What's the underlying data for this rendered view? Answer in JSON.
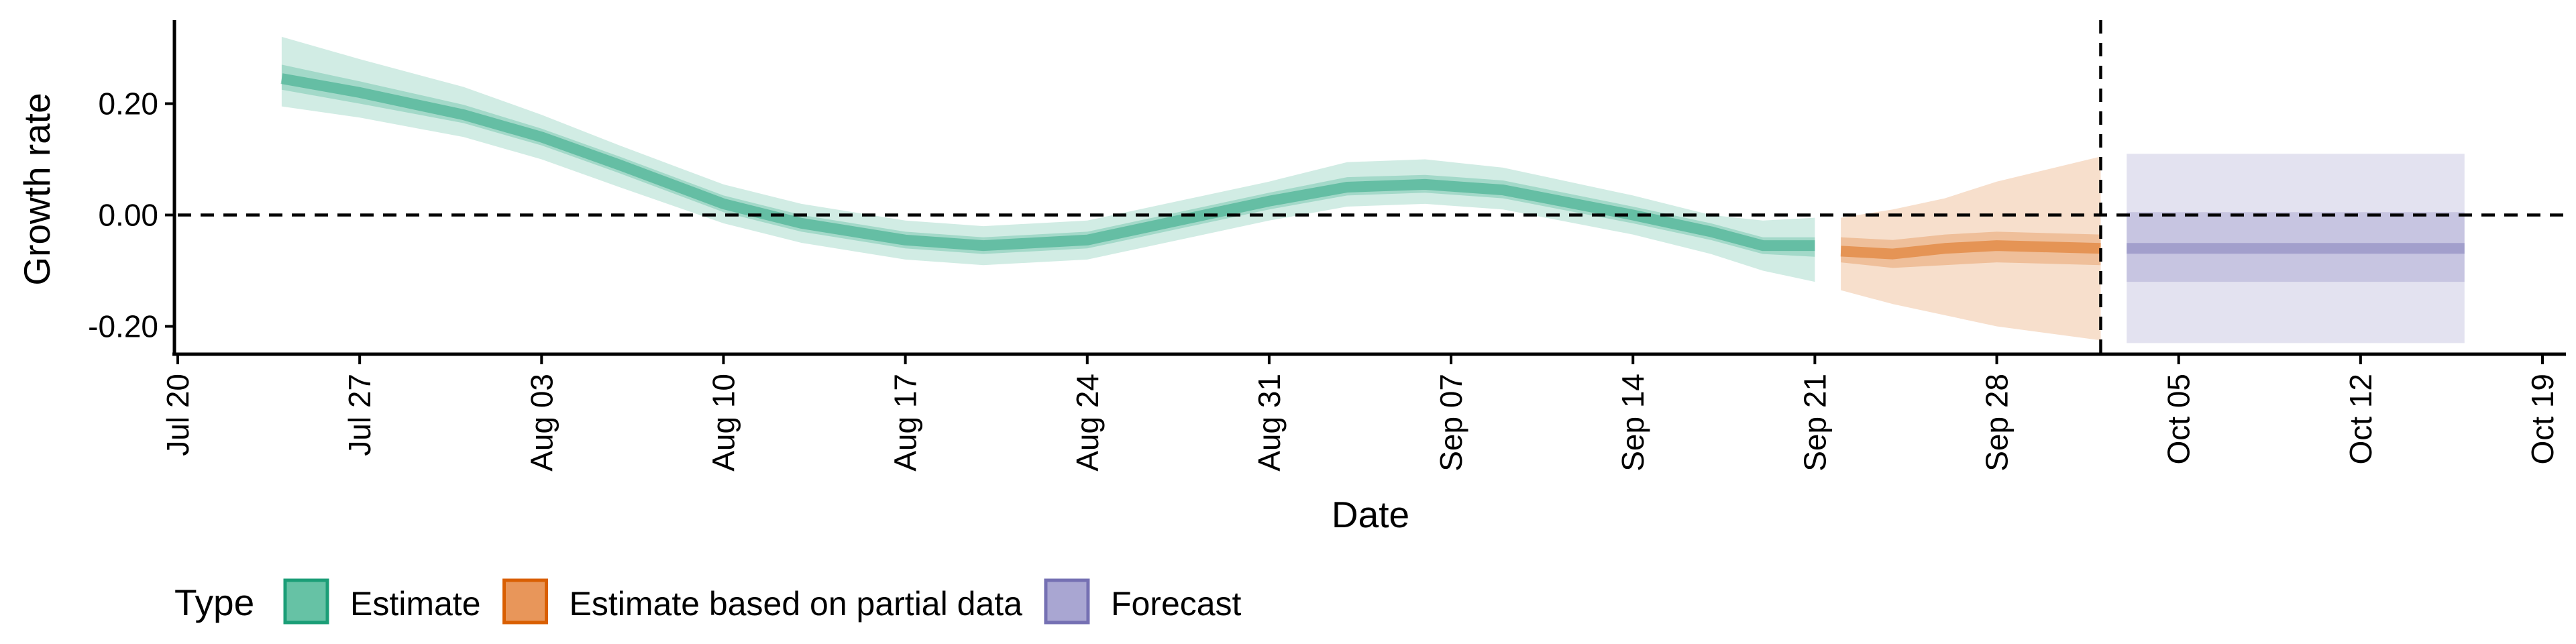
{
  "chart_data": {
    "type": "area",
    "xlabel": "Date",
    "ylabel": "Growth rate",
    "x_axis": {
      "type": "date",
      "range": [
        "2020-07-20",
        "2020-10-19"
      ],
      "ticks": [
        {
          "date": "2020-07-20",
          "label": "Jul 20"
        },
        {
          "date": "2020-07-27",
          "label": "Jul 27"
        },
        {
          "date": "2020-08-03",
          "label": "Aug 03"
        },
        {
          "date": "2020-08-10",
          "label": "Aug 10"
        },
        {
          "date": "2020-08-17",
          "label": "Aug 17"
        },
        {
          "date": "2020-08-24",
          "label": "Aug 24"
        },
        {
          "date": "2020-08-31",
          "label": "Aug 31"
        },
        {
          "date": "2020-09-07",
          "label": "Sep 07"
        },
        {
          "date": "2020-09-14",
          "label": "Sep 14"
        },
        {
          "date": "2020-09-21",
          "label": "Sep 21"
        },
        {
          "date": "2020-09-28",
          "label": "Sep 28"
        },
        {
          "date": "2020-10-05",
          "label": "Oct 05"
        },
        {
          "date": "2020-10-12",
          "label": "Oct 12"
        },
        {
          "date": "2020-10-19",
          "label": "Oct 19"
        }
      ]
    },
    "y_axis": {
      "range": [
        -0.25,
        0.35
      ],
      "ticks": [
        {
          "value": -0.2,
          "label": "-0.20"
        },
        {
          "value": 0.0,
          "label": "0.00"
        },
        {
          "value": 0.2,
          "label": "0.20"
        }
      ]
    },
    "reference_lines": {
      "horizontal": 0.0,
      "vertical_date": "2020-10-02"
    },
    "legend": {
      "title": "Type",
      "position": "bottom",
      "items": [
        {
          "label": "Estimate",
          "fill": "#66c2a5",
          "border": "#1b9e77"
        },
        {
          "label": "Estimate based on partial data",
          "fill": "#e8965a",
          "border": "#d95f02"
        },
        {
          "label": "Forecast",
          "fill": "#a9a6d2",
          "border": "#7570b3"
        }
      ]
    },
    "series": [
      {
        "type_label": "Estimate",
        "color": "#1b9e77",
        "points": [
          {
            "date": "2020-07-24",
            "median": 0.245,
            "lower50": 0.225,
            "upper50": 0.27,
            "lower90": 0.195,
            "upper90": 0.32
          },
          {
            "date": "2020-07-27",
            "median": 0.22,
            "lower50": 0.2,
            "upper50": 0.24,
            "lower90": 0.175,
            "upper90": 0.28
          },
          {
            "date": "2020-07-31",
            "median": 0.18,
            "lower50": 0.165,
            "upper50": 0.198,
            "lower90": 0.14,
            "upper90": 0.23
          },
          {
            "date": "2020-08-03",
            "median": 0.14,
            "lower50": 0.125,
            "upper50": 0.155,
            "lower90": 0.1,
            "upper90": 0.18
          },
          {
            "date": "2020-08-06",
            "median": 0.09,
            "lower50": 0.075,
            "upper50": 0.105,
            "lower90": 0.05,
            "upper90": 0.125
          },
          {
            "date": "2020-08-10",
            "median": 0.02,
            "lower50": 0.005,
            "upper50": 0.035,
            "lower90": -0.015,
            "upper90": 0.055
          },
          {
            "date": "2020-08-13",
            "median": -0.015,
            "lower50": -0.03,
            "upper50": 0.0,
            "lower90": -0.05,
            "upper90": 0.02
          },
          {
            "date": "2020-08-17",
            "median": -0.045,
            "lower50": -0.06,
            "upper50": -0.03,
            "lower90": -0.08,
            "upper90": -0.01
          },
          {
            "date": "2020-08-20",
            "median": -0.055,
            "lower50": -0.07,
            "upper50": -0.04,
            "lower90": -0.09,
            "upper90": -0.02
          },
          {
            "date": "2020-08-24",
            "median": -0.045,
            "lower50": -0.06,
            "upper50": -0.03,
            "lower90": -0.08,
            "upper90": -0.01
          },
          {
            "date": "2020-08-27",
            "median": -0.015,
            "lower50": -0.03,
            "upper50": 0.0,
            "lower90": -0.05,
            "upper90": 0.02
          },
          {
            "date": "2020-08-31",
            "median": 0.025,
            "lower50": 0.01,
            "upper50": 0.04,
            "lower90": -0.01,
            "upper90": 0.06
          },
          {
            "date": "2020-09-03",
            "median": 0.05,
            "lower50": 0.035,
            "upper50": 0.068,
            "lower90": 0.015,
            "upper90": 0.095
          },
          {
            "date": "2020-09-06",
            "median": 0.055,
            "lower50": 0.04,
            "upper50": 0.072,
            "lower90": 0.02,
            "upper90": 0.1
          },
          {
            "date": "2020-09-09",
            "median": 0.045,
            "lower50": 0.03,
            "upper50": 0.062,
            "lower90": 0.01,
            "upper90": 0.085
          },
          {
            "date": "2020-09-14",
            "median": 0.0,
            "lower50": -0.015,
            "upper50": 0.015,
            "lower90": -0.035,
            "upper90": 0.035
          },
          {
            "date": "2020-09-17",
            "median": -0.03,
            "lower50": -0.045,
            "upper50": -0.015,
            "lower90": -0.07,
            "upper90": 0.0
          },
          {
            "date": "2020-09-19",
            "median": -0.055,
            "lower50": -0.07,
            "upper50": -0.04,
            "lower90": -0.1,
            "upper90": -0.01
          },
          {
            "date": "2020-09-21",
            "median": -0.055,
            "lower50": -0.075,
            "upper50": -0.04,
            "lower90": -0.12,
            "upper90": -0.005
          }
        ]
      },
      {
        "type_label": "Estimate based on partial data",
        "color": "#d95f02",
        "points": [
          {
            "date": "2020-09-22",
            "median": -0.065,
            "lower50": -0.085,
            "upper50": -0.04,
            "lower90": -0.135,
            "upper90": -0.005
          },
          {
            "date": "2020-09-24",
            "median": -0.07,
            "lower50": -0.095,
            "upper50": -0.045,
            "lower90": -0.16,
            "upper90": 0.01
          },
          {
            "date": "2020-09-26",
            "median": -0.06,
            "lower50": -0.09,
            "upper50": -0.035,
            "lower90": -0.18,
            "upper90": 0.03
          },
          {
            "date": "2020-09-28",
            "median": -0.055,
            "lower50": -0.085,
            "upper50": -0.03,
            "lower90": -0.2,
            "upper90": 0.06
          },
          {
            "date": "2020-10-02",
            "median": -0.06,
            "lower50": -0.09,
            "upper50": -0.035,
            "lower90": -0.225,
            "upper90": 0.105
          }
        ]
      },
      {
        "type_label": "Forecast",
        "color": "#7570b3",
        "points": [
          {
            "date": "2020-10-03",
            "median": -0.06,
            "lower50": -0.12,
            "upper50": 0.005,
            "lower90": -0.23,
            "upper90": 0.11
          },
          {
            "date": "2020-10-16",
            "median": -0.06,
            "lower50": -0.12,
            "upper50": 0.005,
            "lower90": -0.23,
            "upper90": 0.11
          }
        ]
      }
    ]
  }
}
